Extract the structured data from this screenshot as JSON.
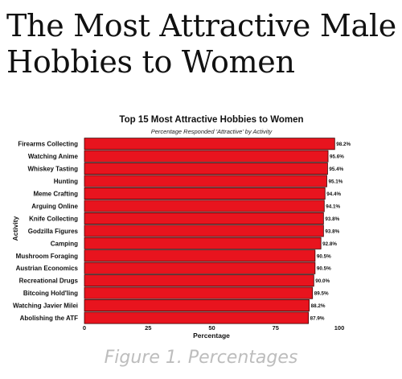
{
  "page": {
    "headline_line1": "The Most Attractive Male",
    "headline_line2": "Hobbies to Women",
    "caption": "Figure 1. Percentages"
  },
  "colors": {
    "bar": "#e8141e",
    "bar_edge": "#3a0000",
    "text": "#111111",
    "caption": "#bdbdbd"
  },
  "chart_data": {
    "type": "bar",
    "orientation": "horizontal",
    "title": "Top 15 Most Attractive Hobbies to Women",
    "subtitle": "Percentage Responded 'Attractive' by Activity",
    "xlabel": "Percentage",
    "ylabel": "Activity",
    "xlim": [
      0,
      100
    ],
    "xticks": [
      0,
      25,
      50,
      75,
      100
    ],
    "grid": false,
    "categories": [
      "Firearms Collecting",
      "Watching Anime",
      "Whiskey Tasting",
      "Hunting",
      "Meme Crafting",
      "Arguing Online",
      "Knife Collecting",
      "Godzilla Figures",
      "Camping",
      "Mushroom Foraging",
      "Austrian Economics",
      "Recreational Drugs",
      "Bitcoing Hold'ling",
      "Watching Javier Milei",
      "Abolishing the ATF"
    ],
    "values": [
      98.2,
      95.6,
      95.4,
      95.1,
      94.4,
      94.1,
      93.8,
      93.8,
      92.8,
      90.5,
      90.5,
      90.0,
      89.5,
      88.2,
      87.9
    ],
    "value_labels": [
      "98.2%",
      "95.6%",
      "95.4%",
      "95.1%",
      "94.4%",
      "94.1%",
      "93.8%",
      "93.8%",
      "92.8%",
      "90.5%",
      "90.5%",
      "90.0%",
      "89.5%",
      "88.2%",
      "87.9%"
    ]
  }
}
